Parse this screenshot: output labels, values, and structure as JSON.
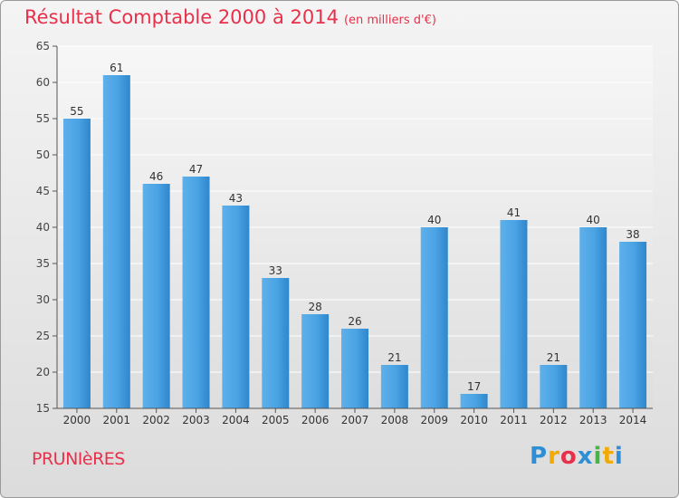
{
  "title": "Résultat Comptable 2000 à 2014",
  "subtitle": "(en milliers d'€)",
  "location": "PRUNIèRES",
  "logo": {
    "text": "Proxiti",
    "letters": [
      "P",
      "r",
      "o",
      "x",
      "i",
      "t",
      "i"
    ],
    "colors": [
      "#2f8fd6",
      "#f2a900",
      "#e8304a",
      "#2f8fd6",
      "#49b34a",
      "#f2a900",
      "#2f8fd6"
    ]
  },
  "colors": {
    "bar": "#3d97dc",
    "title": "#e8304a",
    "grid": "#ffffff"
  },
  "chart_data": {
    "type": "bar",
    "categories": [
      "2000",
      "2001",
      "2002",
      "2003",
      "2004",
      "2005",
      "2006",
      "2007",
      "2008",
      "2009",
      "2010",
      "2011",
      "2012",
      "2013",
      "2014"
    ],
    "values": [
      55,
      61,
      46,
      47,
      43,
      33,
      28,
      26,
      21,
      40,
      17,
      41,
      21,
      40,
      38
    ],
    "ylim": [
      15,
      65
    ],
    "yticks": [
      15,
      20,
      25,
      30,
      35,
      40,
      45,
      50,
      55,
      60,
      65
    ],
    "grid": true,
    "xlabel": "",
    "ylabel": ""
  }
}
